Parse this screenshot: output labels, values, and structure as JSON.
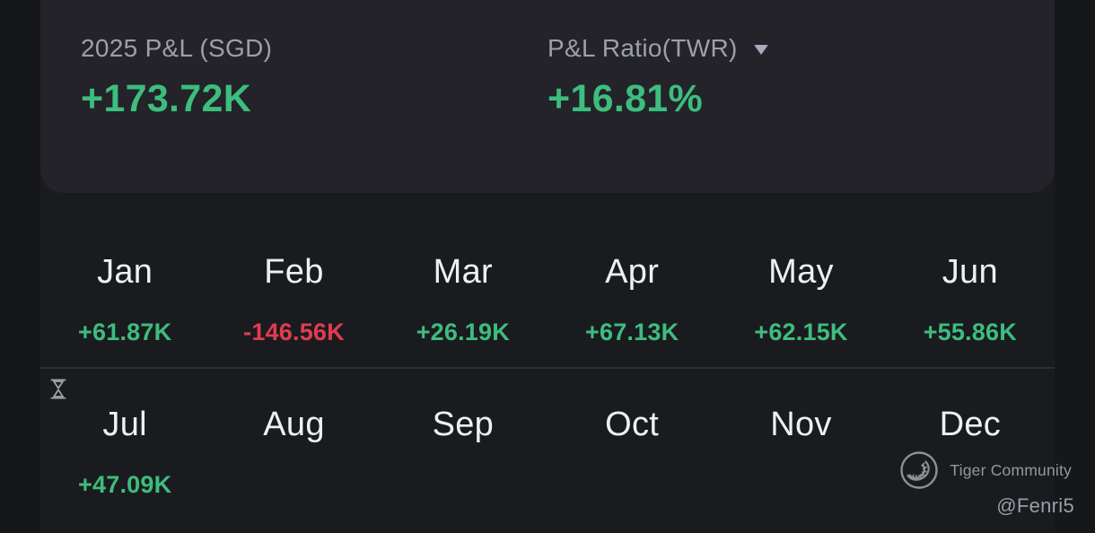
{
  "summary": {
    "pnl_label": "2025 P&L (SGD)",
    "pnl_value": "+173.72K",
    "pnl_trend": "positive",
    "ratio_label": "P&L Ratio(TWR)",
    "ratio_value": "+16.81%",
    "ratio_trend": "positive"
  },
  "months": [
    {
      "label": "Jan",
      "value": "+61.87K",
      "trend": "positive"
    },
    {
      "label": "Feb",
      "value": "-146.56K",
      "trend": "negative"
    },
    {
      "label": "Mar",
      "value": "+26.19K",
      "trend": "positive"
    },
    {
      "label": "Apr",
      "value": "+67.13K",
      "trend": "positive"
    },
    {
      "label": "May",
      "value": "+62.15K",
      "trend": "positive"
    },
    {
      "label": "Jun",
      "value": "+55.86K",
      "trend": "positive"
    },
    {
      "label": "Jul",
      "value": "+47.09K",
      "trend": "positive"
    },
    {
      "label": "Aug",
      "value": "",
      "trend": "none"
    },
    {
      "label": "Sep",
      "value": "",
      "trend": "none"
    },
    {
      "label": "Oct",
      "value": "",
      "trend": "none"
    },
    {
      "label": "Nov",
      "value": "",
      "trend": "none"
    },
    {
      "label": "Dec",
      "value": "",
      "trend": "none"
    }
  ],
  "watermark": {
    "brand": "Tiger Community",
    "username": "@Fenri5"
  },
  "icons": {
    "ratio_dropdown": "caret-down-icon",
    "loading": "hourglass-icon",
    "brand_logo": "tiger-community-logo-icon"
  },
  "colors": {
    "positive": "#3dbd7e",
    "negative": "#e23b50",
    "card_background": "#232329",
    "content_background": "#1a1b1f",
    "page_background": "#161719",
    "label_gray": "#9ba0ab",
    "month_text": "#eef0f2",
    "watermark_gray": "#95979d"
  }
}
